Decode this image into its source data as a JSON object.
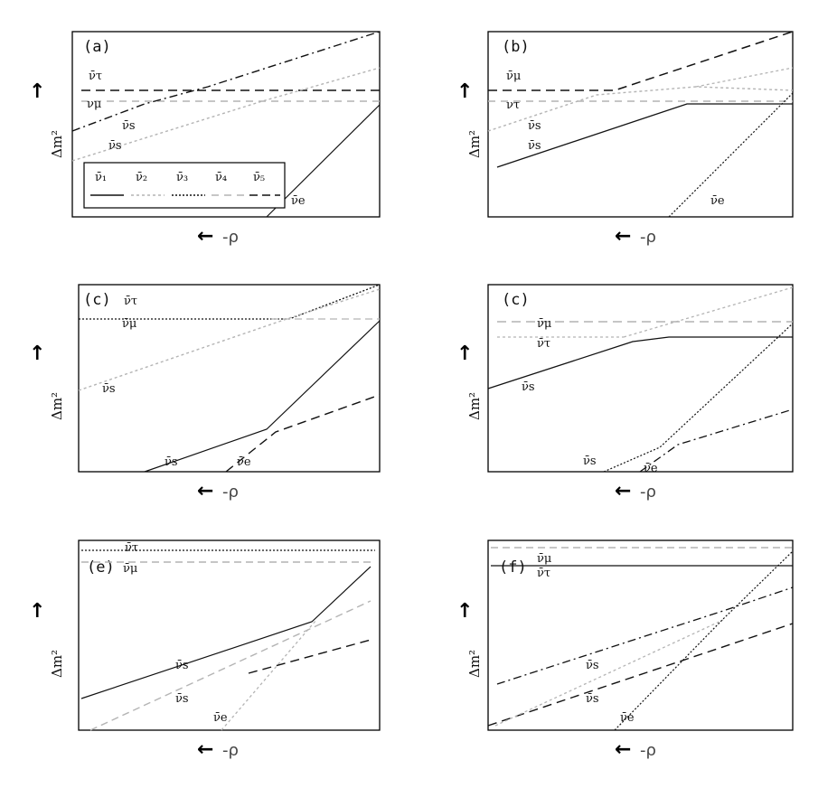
{
  "y_axis_label": "Δm²",
  "x_axis_label": "-ρ",
  "arrow_left": "←",
  "arrow_up": "↑",
  "colors": {
    "solid": "#111111",
    "light": "#b4b4b4",
    "dark": "#111111"
  },
  "legend": [
    "ν̄₁",
    "ν̄₂",
    "ν̄₃",
    "ν̄₄",
    "ν̄₅"
  ],
  "panels": [
    {
      "id": "a",
      "label": "(a)",
      "curve_labels": [
        "ν̄τ",
        "νμ",
        "ν̄s",
        "ν̄s",
        "ν̄e"
      ]
    },
    {
      "id": "b",
      "label": "(b)",
      "curve_labels": [
        "ν̄μ",
        "ντ",
        "ν̄s",
        "ν̄s",
        "ν̄e"
      ]
    },
    {
      "id": "c",
      "label": "(c)",
      "curve_labels": [
        "ν̄τ",
        "ν̄μ",
        "ν̄s",
        "ν̄s",
        "ν̄e"
      ]
    },
    {
      "id": "d",
      "label": "(c)",
      "curve_labels": [
        "ν̄μ",
        "ν̄τ",
        "ν̄s",
        "ν̄s",
        "ν̄e"
      ]
    },
    {
      "id": "e",
      "label": "(e)",
      "curve_labels": [
        "ν̄τ",
        "ν̄μ",
        "ν̄s",
        "ν̄s",
        "ν̄e"
      ]
    },
    {
      "id": "f",
      "label": "(f)",
      "curve_labels": [
        "ν̄μ",
        "ν̄τ",
        "ν̄s",
        "ν̄s",
        "ν̄e"
      ]
    }
  ]
}
